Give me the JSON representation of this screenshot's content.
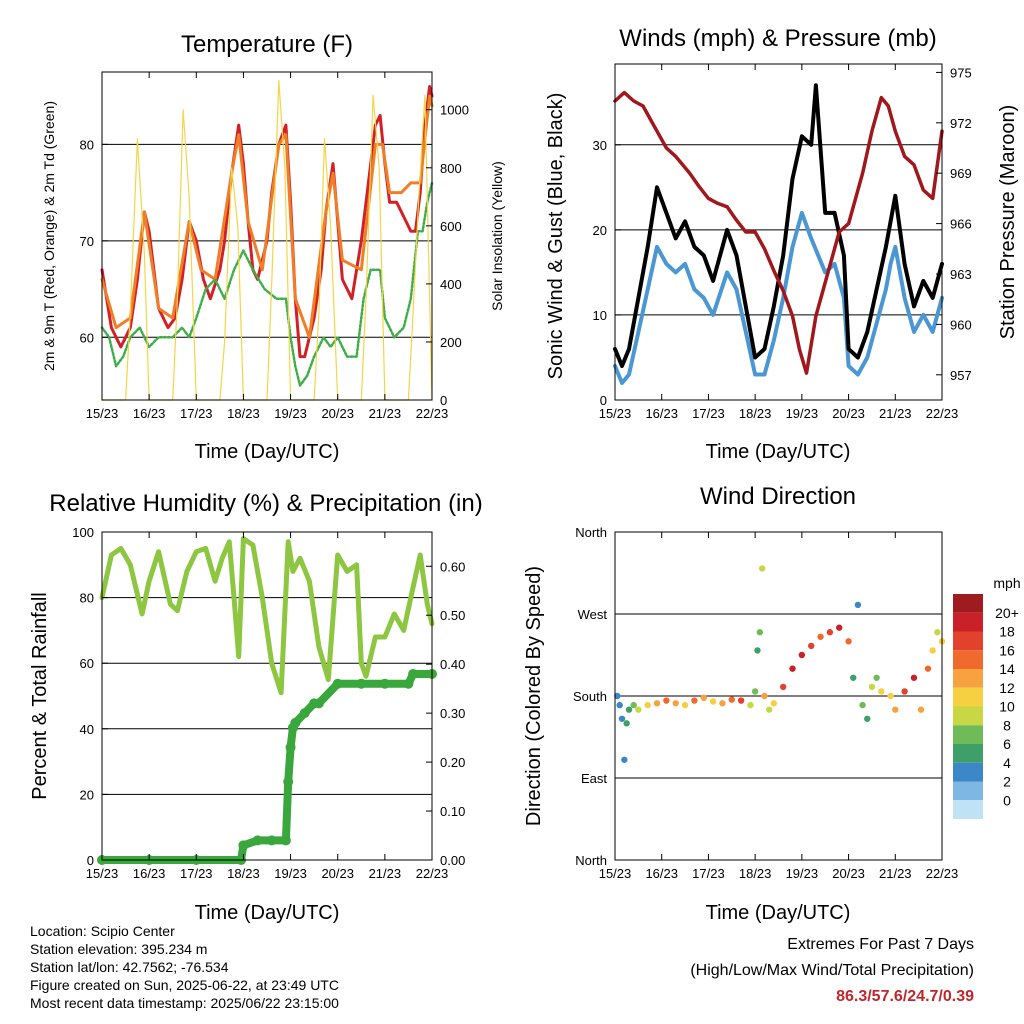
{
  "chart_data": [
    {
      "type": "line",
      "title": "Temperature (F)",
      "xlabel": "Time (Day/UTC)",
      "ylabel": "2m & 9m T (Red, Orange) & 2m Td (Green)",
      "y2label": "Solar Insolation (Yellow)",
      "x_ticks": [
        "15/23",
        "16/23",
        "17/23",
        "18/23",
        "19/23",
        "20/23",
        "21/23",
        "22/23"
      ],
      "ylim": [
        53.5,
        87.5
      ],
      "y_ticks": [
        60,
        70,
        80
      ],
      "y2lim": [
        0,
        1130
      ],
      "y2_ticks": [
        0,
        200,
        400,
        600,
        800,
        1000
      ],
      "grid": true,
      "series": [
        {
          "name": "2m T",
          "color": "#d22027",
          "x": [
            0,
            0.1,
            0.2,
            0.3,
            0.4,
            0.5,
            0.6,
            0.75,
            0.9,
            1.0,
            1.2,
            1.4,
            1.55,
            1.7,
            1.85,
            2.0,
            2.15,
            2.3,
            2.5,
            2.6,
            2.75,
            2.9,
            3.0,
            3.1,
            3.2,
            3.3,
            3.5,
            3.6,
            3.75,
            3.9,
            4.0,
            4.1,
            4.2,
            4.3,
            4.5,
            4.65,
            4.75,
            4.9,
            5.0,
            5.1,
            5.3,
            5.5,
            5.65,
            5.8,
            5.9,
            6.0,
            6.1,
            6.25,
            6.35,
            6.45,
            6.55,
            6.65,
            6.75,
            6.85,
            6.95,
            7.0
          ],
          "y": [
            67,
            64,
            61,
            60,
            59,
            60,
            61,
            66,
            73,
            71,
            63,
            61,
            62,
            66,
            72,
            70,
            66,
            64,
            67,
            70,
            77,
            82,
            78,
            72,
            67,
            66,
            70,
            75,
            80,
            82,
            74,
            64,
            58,
            58,
            62,
            67,
            73,
            78,
            72,
            66,
            64,
            70,
            76,
            82,
            83,
            78,
            74,
            74,
            73,
            72,
            71,
            71,
            75,
            82,
            86,
            85
          ]
        },
        {
          "name": "9m T",
          "color": "#f07e26",
          "x": [
            0,
            0.3,
            0.6,
            0.9,
            1.2,
            1.5,
            1.85,
            2.1,
            2.4,
            2.75,
            2.9,
            3.1,
            3.4,
            3.75,
            3.9,
            4.1,
            4.4,
            4.75,
            4.9,
            5.1,
            5.5,
            5.8,
            5.95,
            6.1,
            6.35,
            6.55,
            6.75,
            6.95,
            7.0
          ],
          "y": [
            66,
            61,
            62,
            73,
            63,
            62,
            72,
            67,
            66,
            77,
            81,
            72,
            67,
            80,
            81,
            64,
            60,
            73,
            77,
            68,
            67,
            80,
            80,
            75,
            75,
            76,
            76,
            85,
            84
          ]
        },
        {
          "name": "2m Td",
          "color": "#3fae49",
          "x": [
            0,
            0.15,
            0.3,
            0.45,
            0.6,
            0.8,
            1.0,
            1.2,
            1.5,
            1.7,
            1.85,
            2.0,
            2.2,
            2.4,
            2.6,
            2.8,
            3.0,
            3.2,
            3.45,
            3.7,
            3.9,
            4.0,
            4.1,
            4.2,
            4.35,
            4.5,
            4.7,
            4.85,
            5.0,
            5.2,
            5.4,
            5.55,
            5.7,
            5.9,
            6.0,
            6.2,
            6.4,
            6.55,
            6.7,
            6.8,
            6.9,
            7.0
          ],
          "y": [
            61,
            60,
            57,
            58,
            60,
            61,
            59,
            60,
            60,
            61,
            60,
            62,
            65,
            66,
            64,
            67,
            69,
            67,
            65,
            64,
            64,
            60,
            57,
            55,
            56,
            58,
            60,
            59,
            60,
            58,
            58,
            64,
            67,
            67,
            62,
            60,
            61,
            64,
            71,
            71,
            74,
            76
          ]
        },
        {
          "name": "Solar Insolation",
          "color": "#f5d547",
          "axis": "right",
          "x": [
            0,
            0.5,
            0.6,
            0.75,
            0.9,
            1.0,
            1.5,
            1.6,
            1.72,
            1.85,
            2.0,
            2.5,
            2.6,
            2.75,
            2.88,
            3.0,
            3.5,
            3.6,
            3.75,
            3.88,
            4.0,
            4.5,
            4.6,
            4.72,
            4.85,
            5.0,
            5.5,
            5.6,
            5.75,
            5.88,
            6.0,
            6.5,
            6.6,
            6.72,
            6.85,
            7.0
          ],
          "y": [
            0,
            0,
            300,
            900,
            500,
            0,
            0,
            350,
            1000,
            700,
            0,
            0,
            200,
            800,
            600,
            0,
            0,
            400,
            1100,
            800,
            0,
            0,
            300,
            900,
            600,
            0,
            0,
            350,
            1050,
            800,
            0,
            0,
            300,
            700,
            1050,
            0
          ]
        }
      ]
    },
    {
      "type": "line",
      "title": "Winds (mph) & Pressure (mb)",
      "xlabel": "Time (Day/UTC)",
      "ylabel": "Sonic Wind & Gust (Blue, Black)",
      "y2label": "Station Pressure (Maroon)",
      "x_ticks": [
        "15/23",
        "16/23",
        "17/23",
        "18/23",
        "19/23",
        "20/23",
        "21/23",
        "22/23"
      ],
      "ylim": [
        0,
        39.5
      ],
      "y_ticks": [
        0,
        10,
        20,
        30
      ],
      "y2lim": [
        955.5,
        975.5
      ],
      "y2_ticks": [
        957,
        960,
        963,
        966,
        969,
        972,
        975
      ],
      "grid": true,
      "series": [
        {
          "name": "Sonic Wind",
          "color": "#4a97d3",
          "x": [
            0,
            0.15,
            0.3,
            0.5,
            0.7,
            0.9,
            1.1,
            1.3,
            1.5,
            1.7,
            1.9,
            2.1,
            2.4,
            2.6,
            2.8,
            3.0,
            3.2,
            3.4,
            3.6,
            3.8,
            4.0,
            4.2,
            4.5,
            4.7,
            4.9,
            5.0,
            5.2,
            5.4,
            5.6,
            5.8,
            5.9,
            6.0,
            6.2,
            6.4,
            6.6,
            6.8,
            7.0
          ],
          "y": [
            4,
            2,
            3,
            8,
            13,
            18,
            16,
            15,
            16,
            13,
            12,
            10,
            15,
            13,
            8,
            3,
            3,
            7,
            12,
            18,
            22,
            19,
            15,
            16,
            12,
            4,
            3,
            5,
            9,
            13,
            16,
            18,
            12,
            8,
            10,
            8,
            12
          ]
        },
        {
          "name": "Gust",
          "color": "#000000",
          "x": [
            0,
            0.15,
            0.3,
            0.5,
            0.7,
            0.9,
            1.1,
            1.3,
            1.5,
            1.7,
            1.9,
            2.1,
            2.4,
            2.6,
            2.8,
            3.0,
            3.2,
            3.4,
            3.6,
            3.8,
            4.0,
            4.2,
            4.3,
            4.5,
            4.7,
            4.9,
            5.0,
            5.2,
            5.4,
            5.6,
            5.8,
            5.9,
            6.0,
            6.2,
            6.4,
            6.6,
            6.8,
            7.0
          ],
          "y": [
            6,
            4,
            6,
            12,
            18,
            25,
            22,
            19,
            21,
            18,
            17,
            14,
            20,
            17,
            11,
            5,
            6,
            11,
            17,
            26,
            31,
            30,
            37,
            22,
            22,
            17,
            6,
            5,
            8,
            13,
            18,
            21,
            24,
            16,
            11,
            14,
            12,
            16
          ]
        },
        {
          "name": "Station Pressure",
          "color": "#a0171c",
          "axis": "right",
          "x": [
            0,
            0.2,
            0.4,
            0.6,
            0.9,
            1.1,
            1.3,
            1.6,
            1.8,
            2.0,
            2.2,
            2.4,
            2.6,
            2.8,
            3.0,
            3.2,
            3.4,
            3.6,
            3.8,
            3.95,
            4.1,
            4.3,
            4.6,
            4.8,
            5.0,
            5.3,
            5.5,
            5.7,
            5.85,
            6.0,
            6.2,
            6.4,
            6.6,
            6.8,
            7.0
          ],
          "y": [
            973.3,
            973.8,
            973.3,
            973.0,
            971.5,
            970.5,
            970.0,
            969.0,
            968.2,
            967.5,
            967.2,
            967.0,
            966.2,
            965.5,
            965.5,
            964.5,
            963.2,
            962.0,
            960.5,
            958.5,
            957.1,
            960.5,
            963.5,
            965.5,
            966.0,
            969.0,
            971.5,
            973.5,
            973.0,
            971.5,
            970.0,
            969.5,
            968.0,
            967.5,
            971.5
          ]
        }
      ]
    },
    {
      "type": "line",
      "title": "Relative Humidity (%) & Precipitation (in)",
      "xlabel": "Time (Day/UTC)",
      "ylabel": "Percent & Total Rainfall",
      "x_ticks": [
        "15/23",
        "16/23",
        "17/23",
        "18/23",
        "19/23",
        "20/23",
        "21/23",
        "22/23"
      ],
      "ylim": [
        0,
        100
      ],
      "y_ticks": [
        0,
        20,
        40,
        60,
        80,
        100
      ],
      "y2lim": [
        0,
        0.67
      ],
      "y2_ticks": [
        "0.00",
        "0.10",
        "0.20",
        "0.30",
        "0.40",
        "0.50",
        "0.60"
      ],
      "grid": true,
      "series": [
        {
          "name": "Relative Humidity",
          "color": "#8dc640",
          "x": [
            0,
            0.2,
            0.4,
            0.6,
            0.85,
            1.0,
            1.2,
            1.45,
            1.6,
            1.8,
            2.0,
            2.2,
            2.4,
            2.55,
            2.7,
            2.8,
            2.9,
            3.0,
            3.2,
            3.4,
            3.6,
            3.8,
            3.95,
            4.05,
            4.2,
            4.4,
            4.6,
            4.8,
            5.0,
            5.2,
            5.4,
            5.5,
            5.6,
            5.8,
            6.0,
            6.2,
            6.4,
            6.55,
            6.75,
            6.9,
            7.0
          ],
          "y": [
            80,
            93,
            95,
            90,
            75,
            85,
            94,
            78,
            76,
            88,
            94,
            95,
            85,
            92,
            97,
            80,
            62,
            98,
            96,
            80,
            60,
            51,
            97,
            88,
            92,
            85,
            65,
            55,
            93,
            88,
            90,
            60,
            56,
            68,
            68,
            75,
            70,
            80,
            93,
            78,
            72
          ]
        },
        {
          "name": "Total Rainfall",
          "color": "#3aa73c",
          "axis": "right",
          "x": [
            0,
            1.0,
            2.0,
            2.95,
            3.0,
            3.3,
            3.6,
            3.9,
            3.95,
            4.0,
            4.05,
            4.1,
            4.3,
            4.5,
            4.6,
            5.0,
            5.5,
            6.0,
            6.5,
            6.6,
            7.0
          ],
          "y": [
            0,
            0,
            0,
            0,
            0.03,
            0.04,
            0.04,
            0.04,
            0.16,
            0.23,
            0.27,
            0.28,
            0.3,
            0.32,
            0.32,
            0.36,
            0.36,
            0.36,
            0.36,
            0.38,
            0.38
          ]
        }
      ]
    },
    {
      "type": "scatter",
      "title": "Wind Direction",
      "xlabel": "Time (Day/UTC)",
      "ylabel": "Direction (Colored By Speed)",
      "x_ticks": [
        "15/23",
        "16/23",
        "17/23",
        "18/23",
        "19/23",
        "20/23",
        "21/23",
        "22/23"
      ],
      "y_ticks": [
        "North",
        "East",
        "South",
        "West",
        "North"
      ],
      "ylim": [
        0,
        360
      ],
      "grid": true,
      "colorbar": {
        "title": "mph",
        "labels": [
          "20+",
          "18",
          "16",
          "14",
          "12",
          "10",
          "8",
          "6",
          "4",
          "2",
          "0"
        ],
        "colors": [
          "#9e1b20",
          "#c92127",
          "#e2412c",
          "#f06a2d",
          "#f7a240",
          "#f5d040",
          "#c8d845",
          "#6fbb58",
          "#3e9f68",
          "#3b87c7",
          "#7db7e3",
          "#bfe3f5"
        ]
      },
      "points": [
        [
          0.05,
          180,
          3
        ],
        [
          0.1,
          170,
          3
        ],
        [
          0.15,
          155,
          2
        ],
        [
          0.2,
          110,
          2
        ],
        [
          0.25,
          150,
          4
        ],
        [
          0.3,
          165,
          5
        ],
        [
          0.4,
          170,
          6
        ],
        [
          0.5,
          165,
          8
        ],
        [
          0.7,
          170,
          10
        ],
        [
          0.9,
          172,
          12
        ],
        [
          1.1,
          175,
          14
        ],
        [
          1.3,
          172,
          12
        ],
        [
          1.5,
          170,
          10
        ],
        [
          1.7,
          175,
          14
        ],
        [
          1.9,
          178,
          12
        ],
        [
          2.1,
          174,
          10
        ],
        [
          2.3,
          172,
          12
        ],
        [
          2.5,
          176,
          14
        ],
        [
          2.7,
          175,
          16
        ],
        [
          2.9,
          170,
          8
        ],
        [
          3.0,
          185,
          6
        ],
        [
          3.05,
          230,
          4
        ],
        [
          3.1,
          250,
          6
        ],
        [
          3.15,
          320,
          8
        ],
        [
          3.2,
          180,
          12
        ],
        [
          3.3,
          165,
          8
        ],
        [
          3.4,
          172,
          10
        ],
        [
          3.6,
          190,
          16
        ],
        [
          3.8,
          210,
          18
        ],
        [
          4.0,
          225,
          18
        ],
        [
          4.2,
          235,
          16
        ],
        [
          4.4,
          245,
          14
        ],
        [
          4.6,
          250,
          16
        ],
        [
          4.8,
          255,
          18
        ],
        [
          5.0,
          240,
          14
        ],
        [
          5.1,
          200,
          4
        ],
        [
          5.2,
          280,
          2
        ],
        [
          5.3,
          170,
          6
        ],
        [
          5.4,
          155,
          4
        ],
        [
          5.5,
          190,
          8
        ],
        [
          5.6,
          200,
          6
        ],
        [
          5.7,
          185,
          10
        ],
        [
          5.9,
          180,
          10
        ],
        [
          6.0,
          165,
          12
        ],
        [
          6.2,
          185,
          16
        ],
        [
          6.4,
          200,
          18
        ],
        [
          6.55,
          165,
          12
        ],
        [
          6.7,
          210,
          14
        ],
        [
          6.8,
          230,
          10
        ],
        [
          6.9,
          250,
          8
        ],
        [
          7.0,
          240,
          10
        ]
      ]
    }
  ],
  "info": {
    "location": "Location: Scipio Center",
    "elevation": "Station elevation: 395.234 m",
    "latlon": "Station lat/lon: 42.7562; -76.534",
    "created": "Figure created on Sun, 2025-06-22, at 23:49 UTC",
    "recent": "Most recent data timestamp: 2025/06/22 23:15:00"
  },
  "extremes": {
    "title": "Extremes For Past 7 Days",
    "subtitle": "(High/Low/Max Wind/Total Precipitation)",
    "values": "86.3/57.6/24.7/0.39"
  }
}
